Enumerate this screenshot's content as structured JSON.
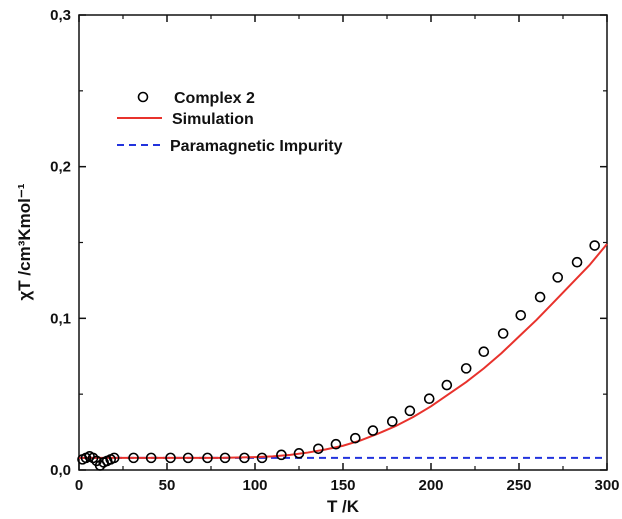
{
  "chart_data": {
    "type": "scatter",
    "xlabel": "T /K",
    "ylabel": "χT /cm³Kmol⁻¹",
    "xlim": [
      0,
      300
    ],
    "ylim": [
      0,
      0.3
    ],
    "x_ticks": [
      0,
      50,
      100,
      150,
      200,
      250,
      300
    ],
    "x_tick_labels": [
      "0",
      "50",
      "100",
      "150",
      "200",
      "250",
      "300"
    ],
    "y_ticks": [
      0,
      0.1,
      0.2,
      0.3
    ],
    "y_tick_labels": [
      "0,0",
      "0,1",
      "0,2",
      "0,3"
    ],
    "grid": false,
    "legend_position": "top-left",
    "colors": {
      "data": "#000000",
      "simulation": "#e8322c",
      "impurity": "#2233dd"
    },
    "series": [
      {
        "name": "Complex 2",
        "style": "open-circle",
        "x": [
          2,
          4,
          6,
          8,
          10,
          12,
          14,
          16,
          18,
          20,
          31,
          41,
          52,
          62,
          73,
          83,
          94,
          104,
          115,
          125,
          136,
          146,
          157,
          167,
          178,
          188,
          199,
          209,
          220,
          230,
          241,
          251,
          262,
          272,
          283,
          293
        ],
        "y": [
          0.007,
          0.008,
          0.009,
          0.008,
          0.006,
          0.003,
          0.005,
          0.006,
          0.007,
          0.008,
          0.008,
          0.008,
          0.008,
          0.008,
          0.008,
          0.008,
          0.008,
          0.008,
          0.01,
          0.011,
          0.014,
          0.017,
          0.021,
          0.026,
          0.032,
          0.039,
          0.047,
          0.056,
          0.067,
          0.078,
          0.09,
          0.102,
          0.114,
          0.127,
          0.137,
          0.148
        ]
      },
      {
        "name": "Simulation",
        "style": "solid-line",
        "x": [
          0,
          20,
          40,
          60,
          80,
          100,
          110,
          120,
          130,
          140,
          150,
          160,
          170,
          180,
          190,
          200,
          210,
          220,
          230,
          240,
          250,
          260,
          270,
          280,
          290,
          300
        ],
        "y": [
          0.008,
          0.008,
          0.008,
          0.008,
          0.008,
          0.0085,
          0.009,
          0.01,
          0.0115,
          0.0135,
          0.016,
          0.0195,
          0.024,
          0.029,
          0.035,
          0.042,
          0.05,
          0.058,
          0.067,
          0.077,
          0.088,
          0.099,
          0.111,
          0.123,
          0.135,
          0.149
        ]
      },
      {
        "name": "Paramagnetic Impurity",
        "style": "dashed-line",
        "x": [
          0,
          300
        ],
        "y": [
          0.008,
          0.008
        ]
      }
    ]
  }
}
